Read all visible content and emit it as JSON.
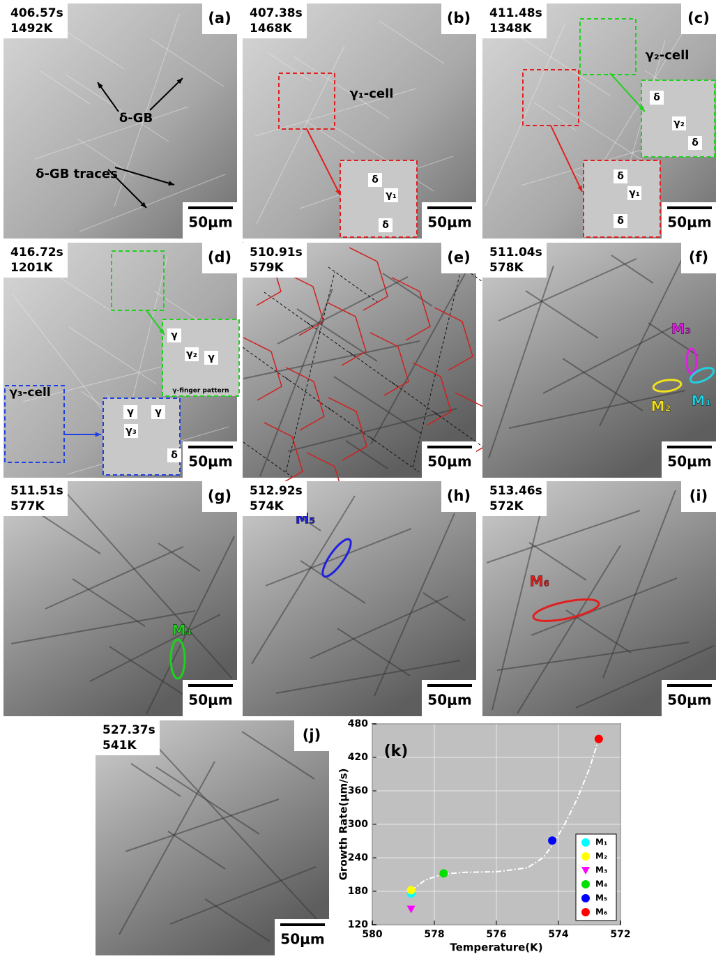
{
  "panels": [
    {
      "label": "(a)",
      "time": "406.57s",
      "temperature": "1492K",
      "scale_bar": "50μm",
      "annotations": [
        {
          "text": "δ-GB",
          "color": "#000000"
        },
        {
          "text": "δ-GB traces",
          "color": "#000000"
        }
      ]
    },
    {
      "label": "(b)",
      "time": "407.38s",
      "temperature": "1468K",
      "scale_bar": "50μm",
      "annotations": [
        {
          "text": "γ₁-cell",
          "color": "#000000"
        },
        {
          "text": "δ",
          "color": "#000000"
        },
        {
          "text": "γ₁",
          "color": "#000000"
        },
        {
          "text": "δ",
          "color": "#000000"
        }
      ]
    },
    {
      "label": "(c)",
      "time": "411.48s",
      "temperature": "1348K",
      "scale_bar": "50μm",
      "annotations": [
        {
          "text": "γ₂-cell",
          "color": "#000000"
        },
        {
          "text": "δ",
          "color": "#000000"
        },
        {
          "text": "γ₂",
          "color": "#000000"
        },
        {
          "text": "δ",
          "color": "#000000"
        },
        {
          "text": "δ",
          "color": "#000000"
        },
        {
          "text": "γ₁",
          "color": "#000000"
        },
        {
          "text": "δ",
          "color": "#000000"
        }
      ]
    },
    {
      "label": "(d)",
      "time": "416.72s",
      "temperature": "1201K",
      "scale_bar": "50μm",
      "annotations": [
        {
          "text": "γ₃-cell",
          "color": "#000000"
        },
        {
          "text": "γ",
          "color": "#000000"
        },
        {
          "text": "γ₂",
          "color": "#000000"
        },
        {
          "text": "γ",
          "color": "#000000"
        },
        {
          "text": "γ-finger pattern",
          "color": "#000000"
        },
        {
          "text": "γ",
          "color": "#000000"
        },
        {
          "text": "γ",
          "color": "#000000"
        },
        {
          "text": "γ₃",
          "color": "#000000"
        },
        {
          "text": "δ",
          "color": "#000000"
        }
      ]
    },
    {
      "label": "(e)",
      "time": "510.91s",
      "temperature": "579K",
      "scale_bar": "50μm",
      "annotations": []
    },
    {
      "label": "(f)",
      "time": "511.04s",
      "temperature": "578K",
      "scale_bar": "50μm",
      "annotations": [
        {
          "text": "M₃",
          "color": "#e020e0"
        },
        {
          "text": "M₂",
          "color": "#f0e020"
        },
        {
          "text": "M₁",
          "color": "#20d0e0"
        }
      ]
    },
    {
      "label": "(g)",
      "time": "511.51s",
      "temperature": "577K",
      "scale_bar": "50μm",
      "annotations": [
        {
          "text": "M₄",
          "color": "#20d020"
        }
      ]
    },
    {
      "label": "(h)",
      "time": "512.92s",
      "temperature": "574K",
      "scale_bar": "50μm",
      "annotations": [
        {
          "text": "M₅",
          "color": "#2020e0"
        }
      ]
    },
    {
      "label": "(i)",
      "time": "513.46s",
      "temperature": "572K",
      "scale_bar": "50μm",
      "annotations": [
        {
          "text": "M₆",
          "color": "#e02020"
        }
      ]
    },
    {
      "label": "(j)",
      "time": "527.37s",
      "temperature": "541K",
      "scale_bar": "50μm",
      "annotations": []
    }
  ],
  "chart_data": {
    "type": "scatter",
    "label": "(k)",
    "x_label": "Temperature(K)",
    "y_label": "Growth Rate(μm/s)",
    "xlim": [
      580,
      572
    ],
    "xticks": [
      580,
      578,
      576,
      574,
      572
    ],
    "ylim": [
      120,
      480
    ],
    "yticks": [
      120,
      180,
      240,
      300,
      360,
      420,
      480
    ],
    "grid": true,
    "background": "#c0c0c0",
    "legend": "lower right",
    "series": [
      {
        "name": "M₁",
        "color": "#00ffff",
        "marker": "circle",
        "x": [
          578.75
        ],
        "values": [
          176
        ]
      },
      {
        "name": "M₂",
        "color": "#ffff00",
        "marker": "circle",
        "x": [
          578.75
        ],
        "values": [
          182
        ]
      },
      {
        "name": "M₃",
        "color": "#ff00ff",
        "marker": "triangle",
        "x": [
          578.75
        ],
        "values": [
          148
        ]
      },
      {
        "name": "M₄",
        "color": "#00e000",
        "marker": "circle",
        "x": [
          577.7
        ],
        "values": [
          212
        ]
      },
      {
        "name": "M₅",
        "color": "#0000ff",
        "marker": "circle",
        "x": [
          574.2
        ],
        "values": [
          271
        ]
      },
      {
        "name": "M₆",
        "color": "#ff0000",
        "marker": "circle",
        "x": [
          572.7
        ],
        "values": [
          453
        ]
      }
    ],
    "fit": {
      "color": "#ffffff",
      "x": [
        578.75,
        578.3,
        577.7,
        577,
        576,
        575,
        574.5,
        574.2,
        573.8,
        573.4,
        573,
        572.7
      ],
      "values": [
        181,
        200,
        211,
        214,
        215,
        222,
        240,
        262,
        300,
        345,
        400,
        453
      ]
    }
  }
}
